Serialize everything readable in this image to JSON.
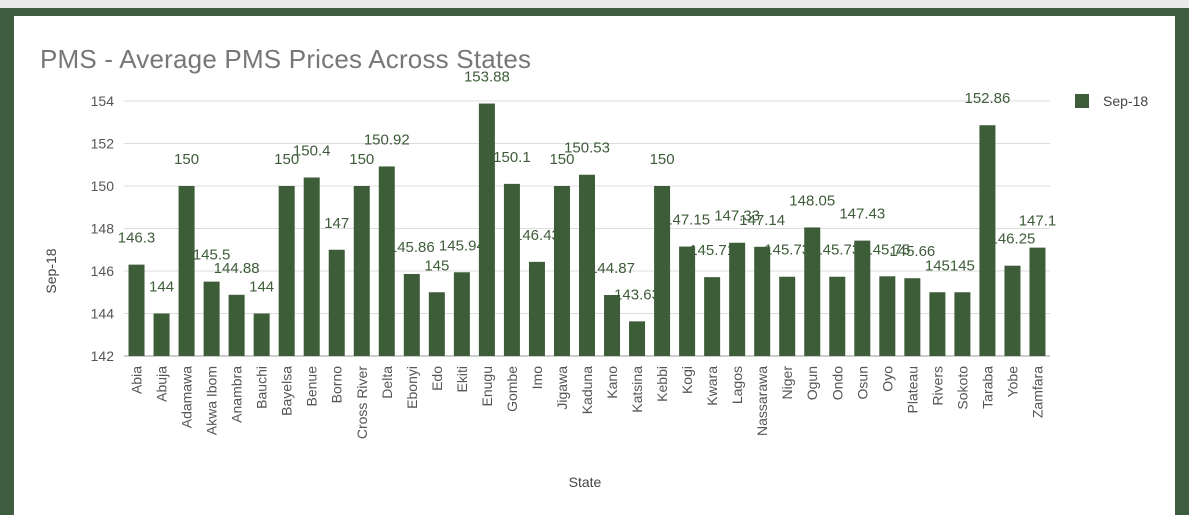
{
  "colors": {
    "frame": "#3d5c40",
    "bar": "#3d5c38",
    "data_label": "#3d5c38",
    "grid": "#dddddd",
    "axis_text": "#555555"
  },
  "chart_data": {
    "type": "bar",
    "title": "PMS - Average PMS Prices Across States",
    "xlabel": "State",
    "ylabel": "Sep-18",
    "ylim": [
      142,
      155
    ],
    "yticks": [
      142,
      144,
      146,
      148,
      150,
      152,
      154
    ],
    "grid": true,
    "legend_position": "right",
    "categories": [
      "Abia",
      "Abuja",
      "Adamawa",
      "Akwa Ibom",
      "Anambra",
      "Bauchi",
      "Bayelsa",
      "Benue",
      "Borno",
      "Cross River",
      "Delta",
      "Ebonyi",
      "Edo",
      "Ekiti",
      "Enugu",
      "Gombe",
      "Imo",
      "Jigawa",
      "Kaduna",
      "Kano",
      "Katsina",
      "Kebbi",
      "Kogi",
      "Kwara",
      "Lagos",
      "Nassarawa",
      "Niger",
      "Ogun",
      "Ondo",
      "Osun",
      "Oyo",
      "Plateau",
      "Rivers",
      "Sokoto",
      "Taraba",
      "Yobe",
      "Zamfara"
    ],
    "series": [
      {
        "name": "Sep-18",
        "values": [
          146.3,
          144,
          150,
          145.5,
          144.88,
          144,
          150,
          150.4,
          147,
          150,
          150.92,
          145.86,
          145,
          145.94,
          153.88,
          150.1,
          146.43,
          150,
          150.53,
          144.87,
          143.63,
          150,
          147.15,
          145.71,
          147.33,
          147.14,
          145.73,
          148.05,
          145.73,
          147.43,
          145.75,
          145.66,
          145,
          145,
          152.86,
          146.25,
          147.1
        ]
      }
    ]
  }
}
